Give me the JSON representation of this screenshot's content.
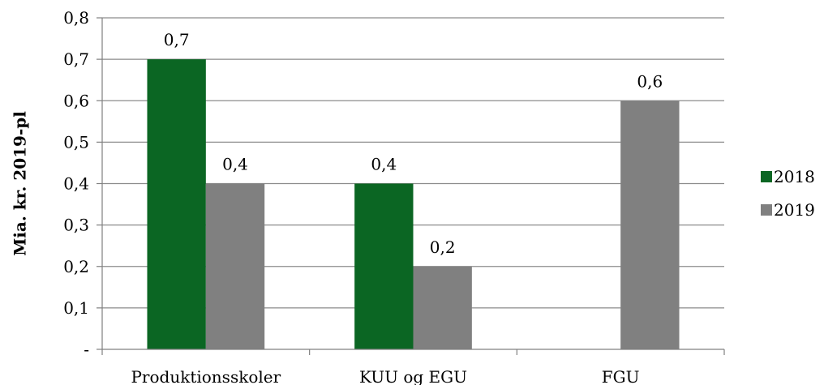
{
  "chart_data": {
    "type": "bar",
    "title": "",
    "xlabel": "",
    "ylabel": "Mia. kr. 2019-pl",
    "ylim": [
      0,
      0.8
    ],
    "yticks": [
      {
        "value": 0,
        "label": "-"
      },
      {
        "value": 0.1,
        "label": "0,1"
      },
      {
        "value": 0.2,
        "label": "0,2"
      },
      {
        "value": 0.3,
        "label": "0,3"
      },
      {
        "value": 0.4,
        "label": "0,4"
      },
      {
        "value": 0.5,
        "label": "0,5"
      },
      {
        "value": 0.6,
        "label": "0,6"
      },
      {
        "value": 0.7,
        "label": "0,7"
      },
      {
        "value": 0.8,
        "label": "0,8"
      }
    ],
    "grid": true,
    "legend_position": "right",
    "categories": [
      "Produktionsskoler",
      "KUU og EGU",
      "FGU"
    ],
    "series": [
      {
        "name": "2018",
        "color": "#0b6623",
        "values": [
          0.7,
          0.4,
          null
        ],
        "labels": [
          "0,7",
          "0,4",
          null
        ]
      },
      {
        "name": "2019",
        "color": "#808080",
        "values": [
          0.4,
          0.2,
          0.6
        ],
        "labels": [
          "0,4",
          "0,2",
          "0,6"
        ]
      }
    ]
  }
}
